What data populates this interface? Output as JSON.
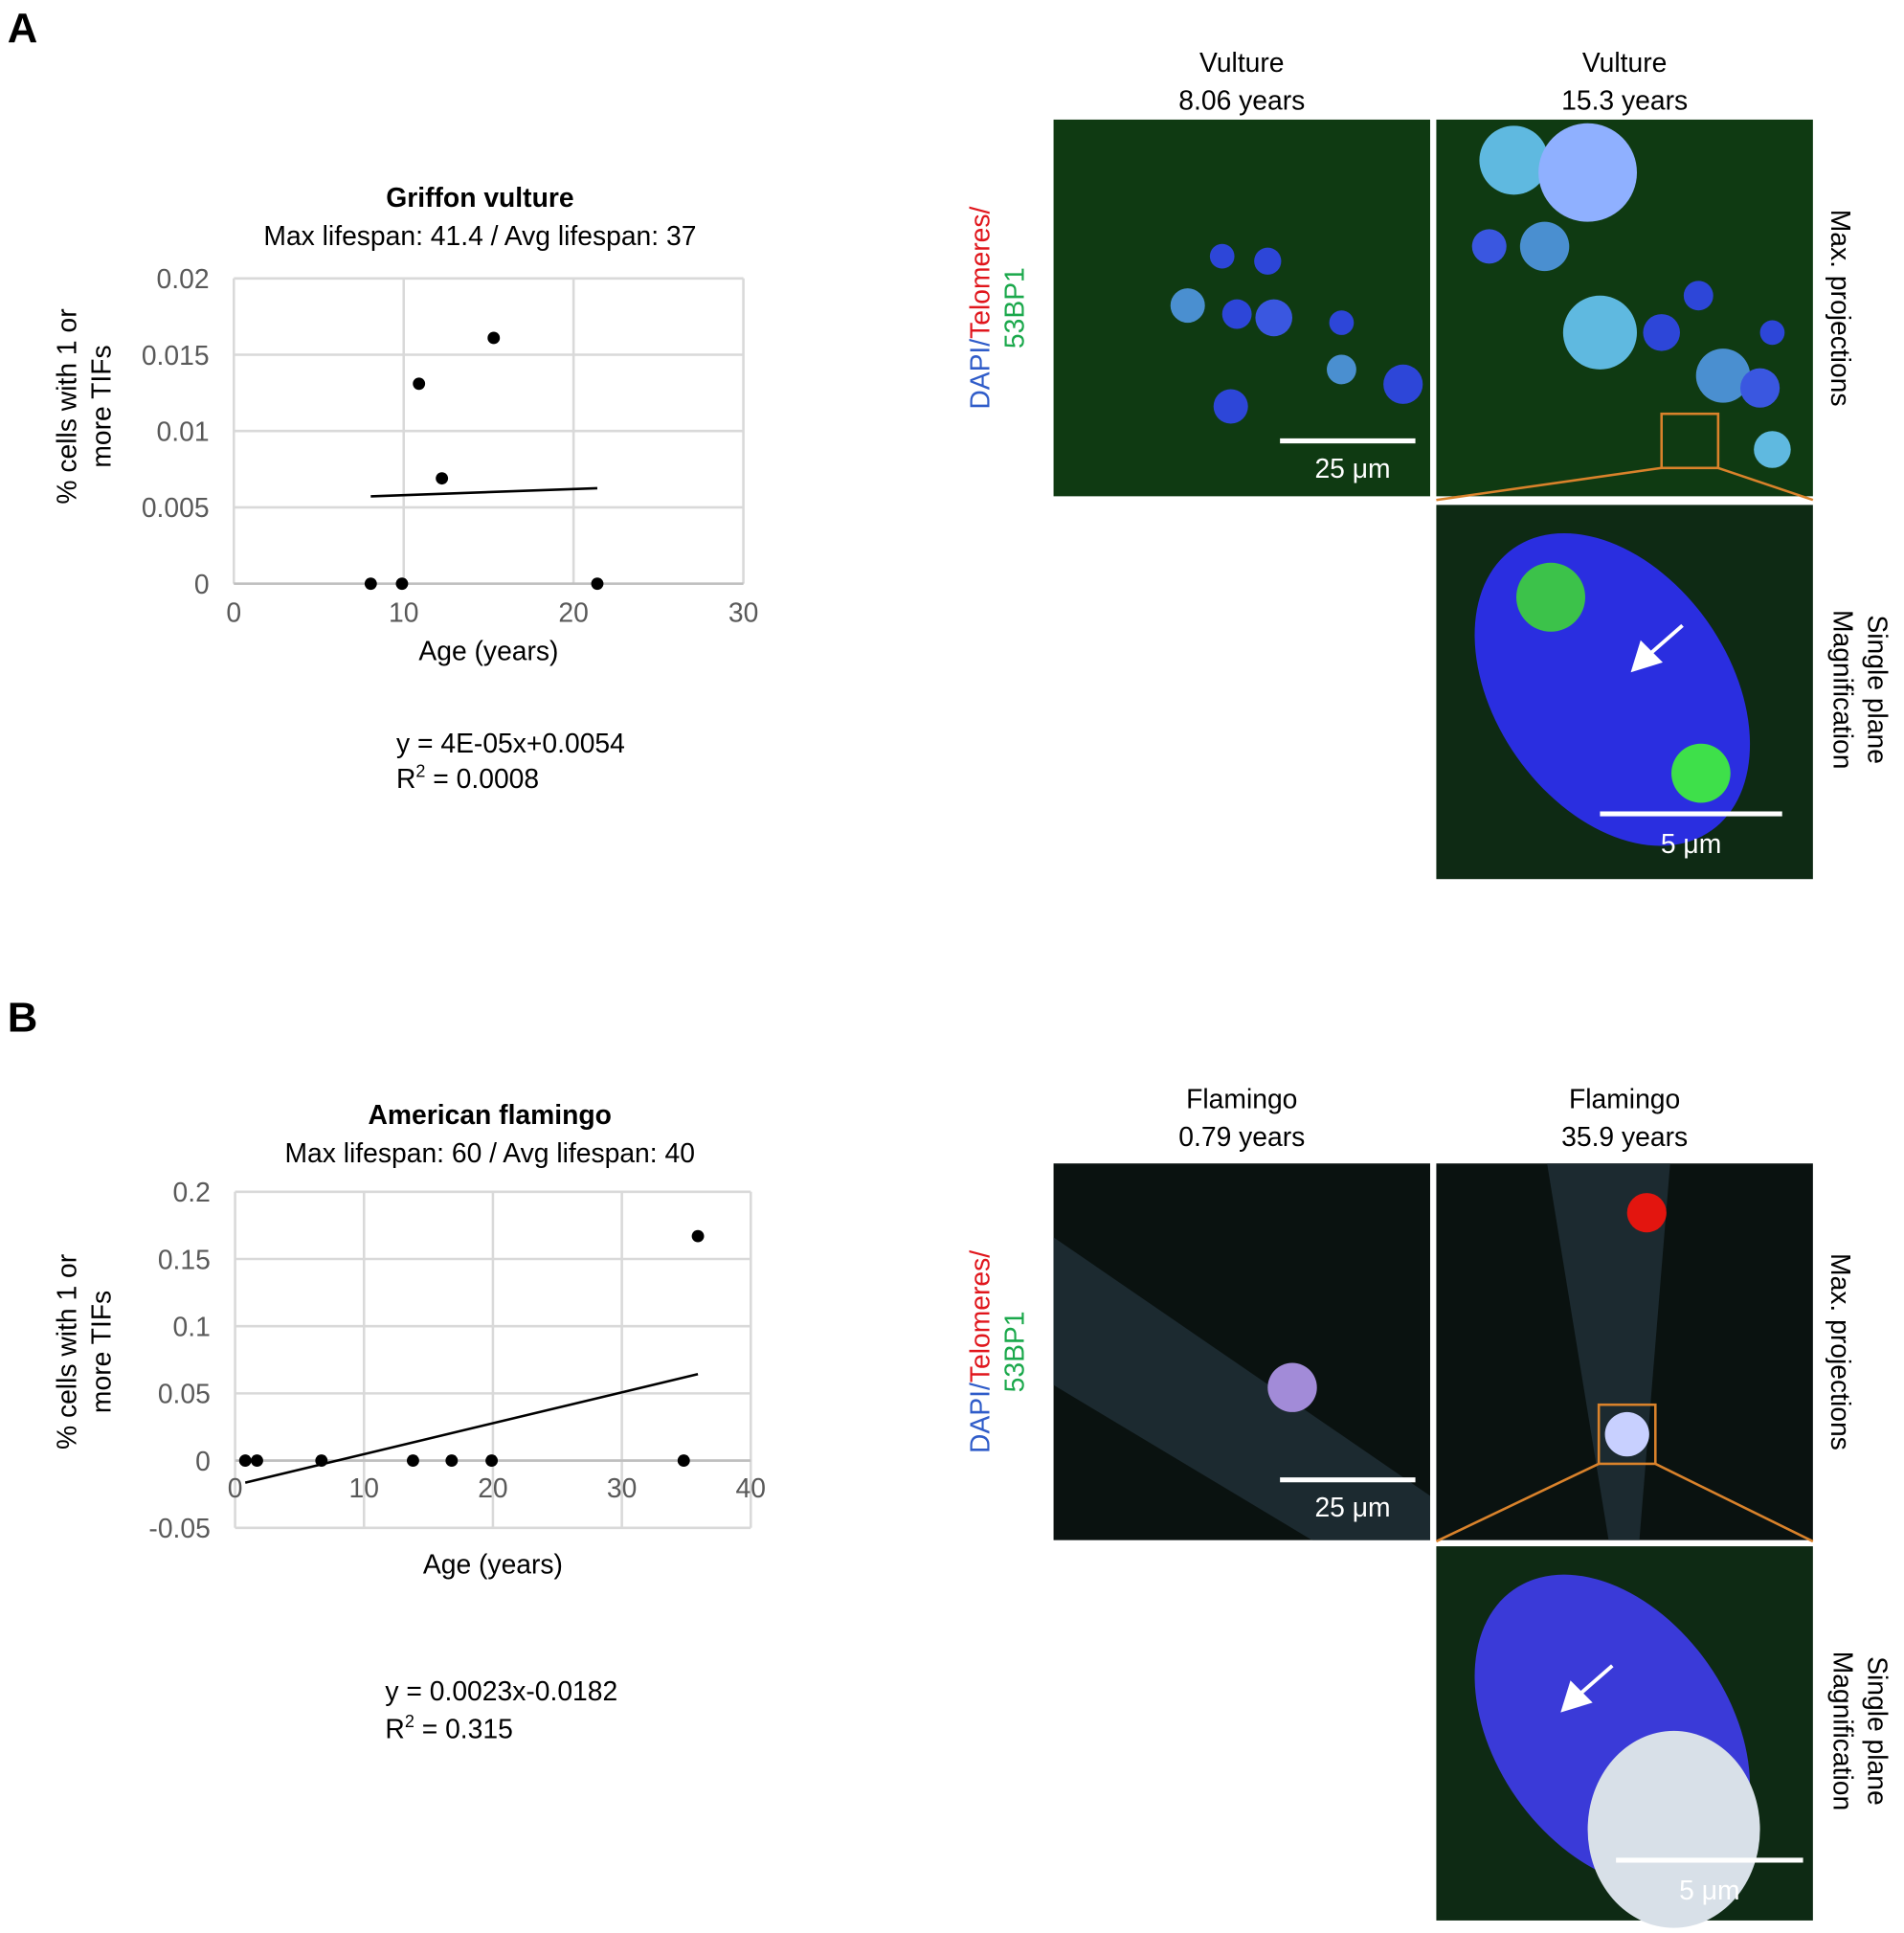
{
  "panels": [
    {
      "label": "A",
      "images": [
        {
          "caption": [
            "Vulture",
            "8.06 years"
          ],
          "scale_bar": "25 μm"
        },
        {
          "caption": [
            "Vulture",
            "15.3 years"
          ]
        }
      ],
      "magnification_scale_bar": "5 μm",
      "channel_label": [
        "DAPI/",
        "Telomeres/",
        "53BP1"
      ],
      "side_labels": {
        "projection": "Max. projections",
        "single": [
          "Single plane",
          "Magnification"
        ]
      }
    },
    {
      "label": "B",
      "images": [
        {
          "caption": [
            "Flamingo",
            "0.79 years"
          ],
          "scale_bar": "25 μm"
        },
        {
          "caption": [
            "Flamingo",
            "35.9 years"
          ]
        }
      ],
      "magnification_scale_bar": "5 μm",
      "channel_label": [
        "DAPI/",
        "Telomeres/",
        "53BP1"
      ],
      "side_labels": {
        "projection": "Max. projections",
        "single": [
          "Single plane",
          "Magnification"
        ]
      }
    }
  ],
  "chart_data": [
    {
      "type": "scatter",
      "title": "Griffon vulture",
      "subtitle": "Max lifespan: 41.4 / Avg lifespan: 37",
      "x_label": "Age (years)",
      "y_label": [
        "% cells with 1 or",
        "more TIFs"
      ],
      "x": [
        8.06,
        9.9,
        10.9,
        12.25,
        15.3,
        21.4
      ],
      "values": [
        0,
        0,
        0.0131,
        0.0069,
        0.0161,
        0
      ],
      "color": "#000000",
      "xlim": [
        0,
        30
      ],
      "xticks": [
        0,
        10,
        20,
        30
      ],
      "ylim": [
        0,
        0.02
      ],
      "yticks": [
        0,
        0.005,
        0.01,
        0.015,
        0.02
      ],
      "grid": true,
      "trendline": {
        "slope": 4e-05,
        "intercept": 0.0054,
        "equation": "y = 4E-05x+0.0054",
        "r_squared_label": [
          "R",
          "2",
          " = 0.0008"
        ]
      }
    },
    {
      "type": "scatter",
      "title": "American flamingo",
      "subtitle": "Max lifespan: 60 / Avg lifespan: 40",
      "x_label": "Age (years)",
      "y_label": [
        "% cells with 1 or",
        "more TIFs"
      ],
      "x": [
        0.79,
        1.7,
        6.7,
        13.8,
        16.8,
        19.9,
        34.8,
        35.9
      ],
      "values": [
        0,
        0,
        0,
        0,
        0,
        0,
        0,
        0.167
      ],
      "color": "#000000",
      "xlim": [
        0,
        40
      ],
      "xticks": [
        0,
        10,
        20,
        30,
        40
      ],
      "ylim": [
        -0.05,
        0.2
      ],
      "yticks": [
        -0.05,
        0,
        0.05,
        0.1,
        0.15,
        0.2
      ],
      "grid": true,
      "trendline": {
        "slope": 0.0023,
        "intercept": -0.0182,
        "equation": "y = 0.0023x-0.0182",
        "r_squared_label": [
          "R",
          "2",
          " = 0.315"
        ]
      }
    }
  ]
}
